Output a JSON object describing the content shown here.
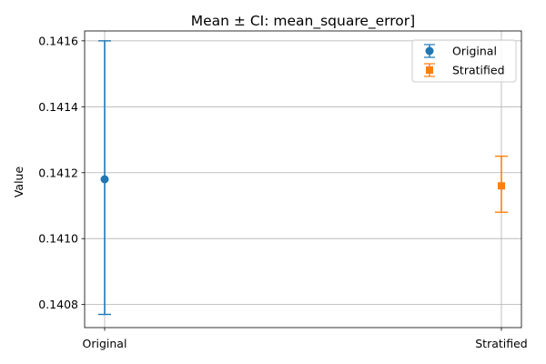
{
  "chart_data": {
    "type": "errorbar",
    "title": "Mean ± CI: mean_square_error]",
    "xlabel": "",
    "ylabel": "Value",
    "categories": [
      "Original",
      "Stratified"
    ],
    "ylim": [
      0.14073,
      0.14163
    ],
    "yticks": [
      "0.1408",
      "0.1410",
      "0.1412",
      "0.1414",
      "0.1416"
    ],
    "grid": true,
    "legend_position": "top-right",
    "series": [
      {
        "name": "Original",
        "category": "Original",
        "mean": 0.14118,
        "ci_low": 0.14077,
        "ci_high": 0.1416,
        "color": "#1f77b4",
        "marker": "circle"
      },
      {
        "name": "Stratified",
        "category": "Stratified",
        "mean": 0.14116,
        "ci_low": 0.14108,
        "ci_high": 0.14125,
        "color": "#ff7f0e",
        "marker": "square"
      }
    ]
  }
}
